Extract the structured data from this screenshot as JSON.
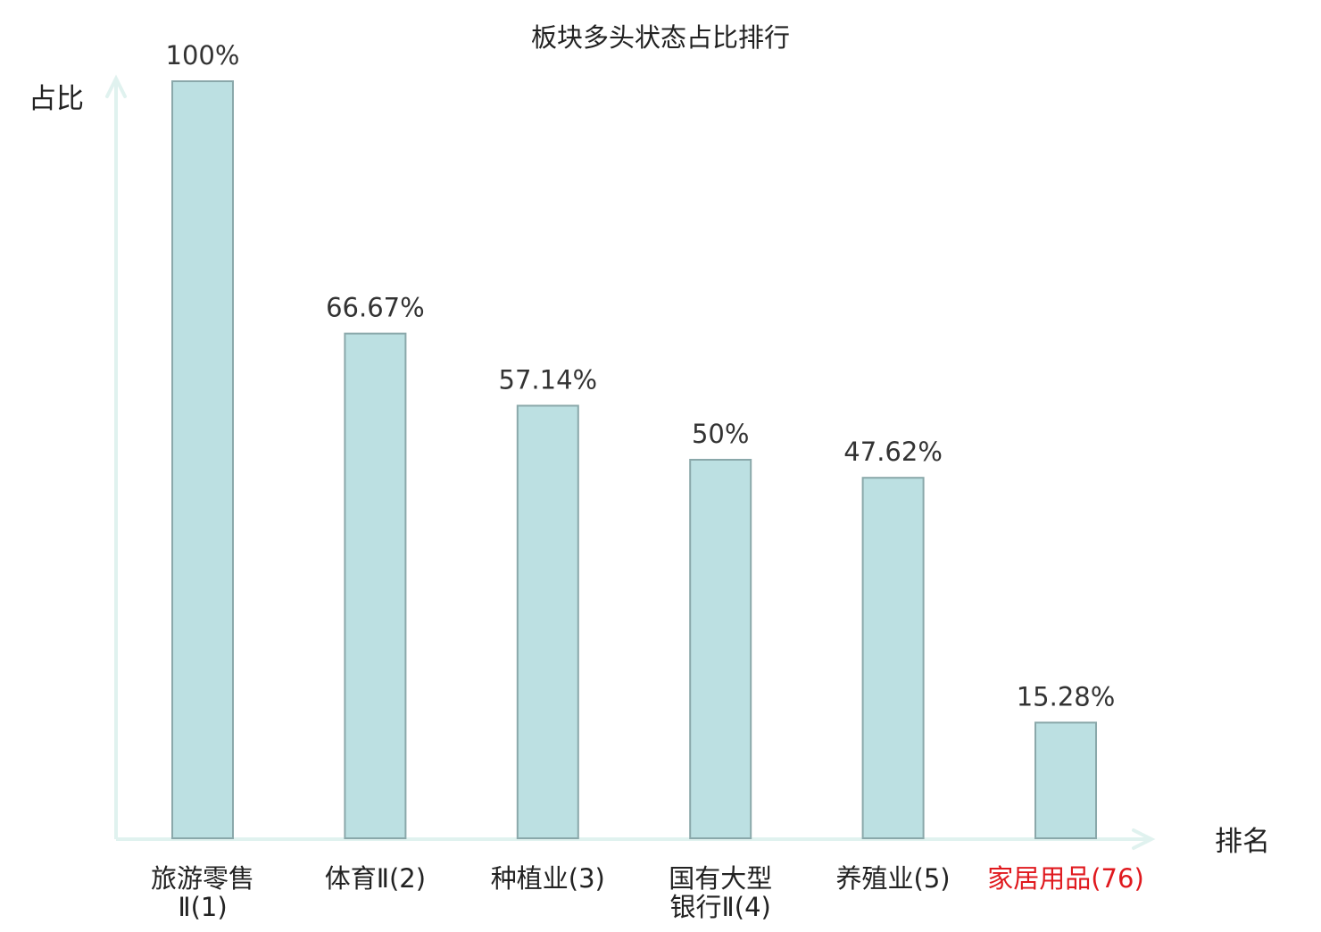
{
  "chart_data": {
    "type": "bar",
    "title": "板块多头状态占比排行",
    "ylabel": "占比",
    "xlabel": "排名",
    "categories": [
      [
        "旅游零售",
        "Ⅱ(1)"
      ],
      [
        "体育Ⅱ(2)"
      ],
      [
        "种植业(3)"
      ],
      [
        "国有大型",
        "银行Ⅱ(4)"
      ],
      [
        "养殖业(5)"
      ],
      [
        "家居用品(76)"
      ]
    ],
    "values": [
      100,
      66.67,
      57.14,
      50,
      47.62,
      15.28
    ],
    "value_labels": [
      "100%",
      "66.67%",
      "57.14%",
      "50%",
      "47.62%",
      "15.28%"
    ],
    "highlight_index": 5,
    "ylim": [
      0,
      100
    ],
    "grid": false,
    "legend": "none",
    "colors": {
      "bar_fill": "#bce0e2",
      "bar_stroke": "#8aa8aa",
      "axis": "#e0f2ef",
      "text": "#333333",
      "label_text": "#222222",
      "highlight": "#e0191e"
    }
  }
}
